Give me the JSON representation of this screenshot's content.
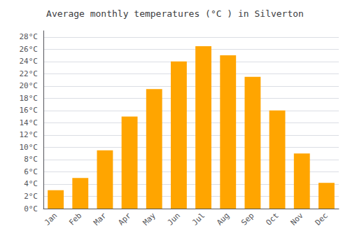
{
  "chart_data": {
    "type": "bar",
    "title": "Average monthly temperatures (°C ) in Silverton",
    "categories": [
      "Jan",
      "Feb",
      "Mar",
      "Apr",
      "May",
      "Jun",
      "Jul",
      "Aug",
      "Sep",
      "Oct",
      "Nov",
      "Dec"
    ],
    "values": [
      3,
      5,
      9.5,
      15,
      19.5,
      24,
      26.5,
      25,
      21.5,
      16,
      9,
      4.2
    ],
    "color": "#FFA500",
    "ylim": [
      0,
      29
    ],
    "yticks": [
      {
        "value": 0,
        "label": "0°C"
      },
      {
        "value": 2,
        "label": "2°C"
      },
      {
        "value": 4,
        "label": "4°C"
      },
      {
        "value": 6,
        "label": "6°C"
      },
      {
        "value": 8,
        "label": "8°C"
      },
      {
        "value": 10,
        "label": "10°C"
      },
      {
        "value": 12,
        "label": "12°C"
      },
      {
        "value": 14,
        "label": "14°C"
      },
      {
        "value": 16,
        "label": "16°C"
      },
      {
        "value": 18,
        "label": "18°C"
      },
      {
        "value": 20,
        "label": "20°C"
      },
      {
        "value": 22,
        "label": "22°C"
      },
      {
        "value": 24,
        "label": "24°C"
      },
      {
        "value": 26,
        "label": "26°C"
      },
      {
        "value": 28,
        "label": "28°C"
      }
    ],
    "grid": true
  }
}
